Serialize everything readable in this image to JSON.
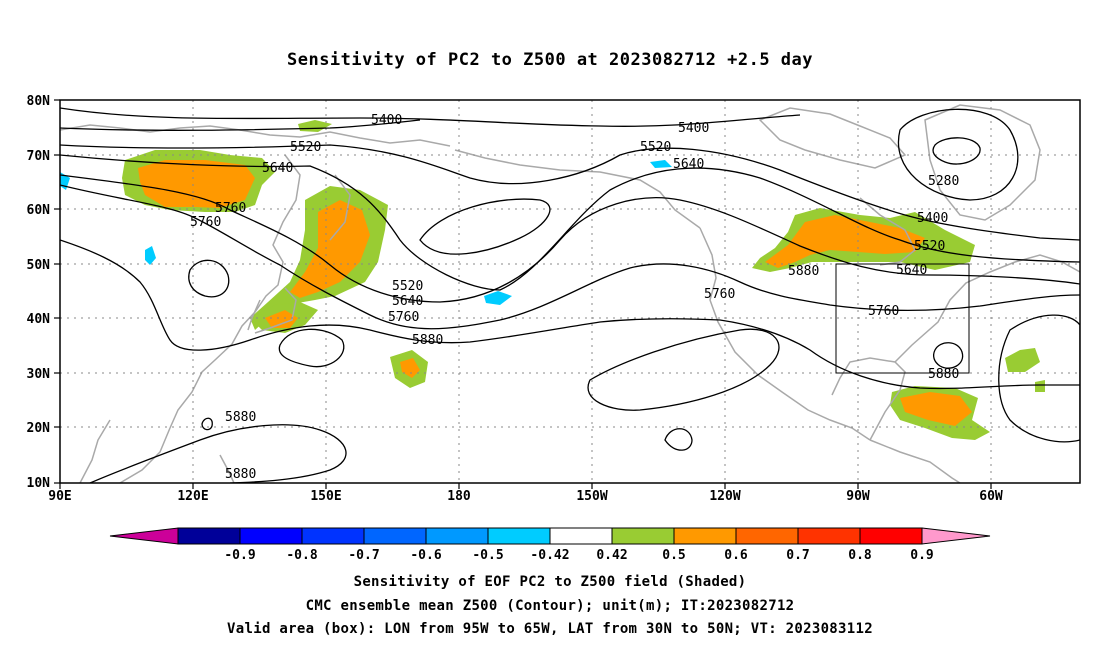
{
  "title": "Sensitivity of PC2 to Z500 at 2023082712 +2.5 day",
  "map": {
    "lat_labels": [
      "80N",
      "70N",
      "60N",
      "50N",
      "40N",
      "30N",
      "20N",
      "10N"
    ],
    "lon_labels": [
      "90E",
      "120E",
      "150E",
      "180",
      "150W",
      "120W",
      "90W",
      "60W"
    ],
    "valid_box": {
      "lon_from": "95W",
      "lon_to": "65W",
      "lat_from": "30N",
      "lat_to": "50N"
    },
    "contour_labels": [
      "5400",
      "5400",
      "5520",
      "5520",
      "5640",
      "5640",
      "5760",
      "5760",
      "5280",
      "5400",
      "5520",
      "5640",
      "5880",
      "5520",
      "5640",
      "5760",
      "5760",
      "5880",
      "5880",
      "5880",
      "5880",
      "5760"
    ],
    "colors": {
      "coast": "#a9a9a9",
      "contour": "#000000",
      "shade_0_42": "#99cc33",
      "shade_0_5": "#ff9900",
      "shade_0_6": "#ff6600",
      "shade_neg_0_42": "#00ccff"
    }
  },
  "colorbar": {
    "labels": [
      "-0.9",
      "-0.8",
      "-0.7",
      "-0.6",
      "-0.5",
      "-0.42",
      "0.42",
      "0.5",
      "0.6",
      "0.7",
      "0.8",
      "0.9"
    ],
    "colors": [
      "#cc0099",
      "#000099",
      "#0000ff",
      "#0033ff",
      "#0066ff",
      "#0099ff",
      "#00ccff",
      "#ffffff",
      "#99cc33",
      "#ff9900",
      "#ff6600",
      "#ff3300",
      "#ff0000",
      "#ff99cc"
    ]
  },
  "captions": {
    "line1": "Sensitivity of EOF PC2 to Z500 field (Shaded)",
    "line2": "CMC ensemble mean Z500 (Contour); unit(m); IT:2023082712",
    "line3": "Valid area (box): LON from 95W to 65W, LAT from 30N to 50N; VT: 2023083112"
  }
}
